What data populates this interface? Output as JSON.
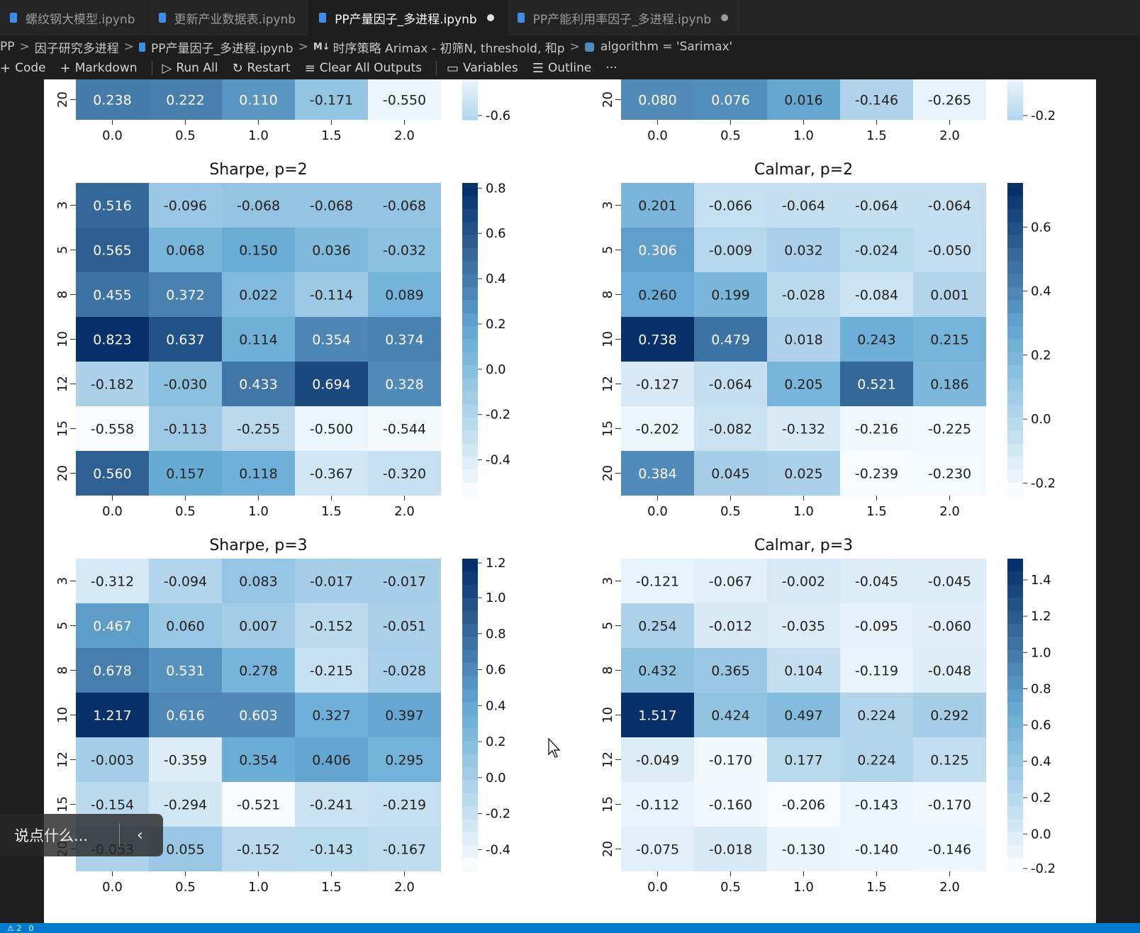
{
  "tabs": [
    {
      "label": "螺纹钢大模型.ipynb",
      "active": false,
      "dirty": false
    },
    {
      "label": "更新产业数据表.ipynb",
      "active": false,
      "dirty": false
    },
    {
      "label": "PP产量因子_多进程.ipynb",
      "active": true,
      "dirty": true
    },
    {
      "label": "PP产能利用率因子_多进程.ipynb",
      "active": false,
      "dirty": true
    }
  ],
  "breadcrumb": {
    "root": "PP",
    "folder": "因子研究多进程",
    "file": "PP产量因子_多进程.ipynb",
    "md_marker": "M↓",
    "section": "时序策略 Arimax - 初筛N, threshold, 和p",
    "symbol": "algorithm = 'Sarimax'"
  },
  "toolbar": {
    "code": "Code",
    "markdown": "Markdown",
    "run_all": "Run All",
    "restart": "Restart",
    "clear": "Clear All Outputs",
    "variables": "Variables",
    "outline": "Outline",
    "more": "···"
  },
  "colors": {
    "heat_low": "#f7fbff",
    "heat_high": "#08306b",
    "accent": "#007acc"
  },
  "chart_data": [
    {
      "type": "heatmap",
      "title": "",
      "partial": true,
      "x_categories": [
        "0.0",
        "0.5",
        "1.0",
        "1.5",
        "2.0"
      ],
      "y_categories": [
        "20"
      ],
      "values": [
        [
          0.238,
          0.222,
          0.11,
          -0.171,
          -0.55
        ]
      ],
      "vmin": -0.6,
      "vmax": 0.6,
      "colorbar_ticks": [
        "-0.6"
      ]
    },
    {
      "type": "heatmap",
      "title": "",
      "partial": true,
      "x_categories": [
        "0.0",
        "0.5",
        "1.0",
        "1.5",
        "2.0"
      ],
      "y_categories": [
        "20"
      ],
      "values": [
        [
          0.08,
          0.076,
          0.016,
          -0.146,
          -0.265
        ]
      ],
      "vmin": -0.3,
      "vmax": 0.3,
      "colorbar_ticks": [
        "-0.2"
      ]
    },
    {
      "type": "heatmap",
      "title": "Sharpe, p=2",
      "x_categories": [
        "0.0",
        "0.5",
        "1.0",
        "1.5",
        "2.0"
      ],
      "y_categories": [
        "3",
        "5",
        "8",
        "10",
        "12",
        "15",
        "20"
      ],
      "values": [
        [
          0.516,
          -0.096,
          -0.068,
          -0.068,
          -0.068
        ],
        [
          0.565,
          0.068,
          0.15,
          0.036,
          -0.032
        ],
        [
          0.455,
          0.372,
          0.022,
          -0.114,
          0.089
        ],
        [
          0.823,
          0.637,
          0.114,
          0.354,
          0.374
        ],
        [
          -0.182,
          -0.03,
          0.433,
          0.694,
          0.328
        ],
        [
          -0.558,
          -0.113,
          -0.255,
          -0.5,
          -0.544
        ],
        [
          0.56,
          0.157,
          0.118,
          -0.367,
          -0.32
        ]
      ],
      "vmin": -0.558,
      "vmax": 0.823,
      "colorbar_ticks": [
        "0.8",
        "0.6",
        "0.4",
        "0.2",
        "0.0",
        "-0.2",
        "-0.4"
      ]
    },
    {
      "type": "heatmap",
      "title": "Calmar, p=2",
      "x_categories": [
        "0.0",
        "0.5",
        "1.0",
        "1.5",
        "2.0"
      ],
      "y_categories": [
        "3",
        "5",
        "8",
        "10",
        "12",
        "15",
        "20"
      ],
      "values": [
        [
          0.201,
          -0.066,
          -0.064,
          -0.064,
          -0.064
        ],
        [
          0.306,
          -0.009,
          0.032,
          -0.024,
          -0.05
        ],
        [
          0.26,
          0.199,
          -0.028,
          -0.084,
          0.001
        ],
        [
          0.738,
          0.479,
          0.018,
          0.243,
          0.215
        ],
        [
          -0.127,
          -0.064,
          0.205,
          0.521,
          0.186
        ],
        [
          -0.202,
          -0.082,
          -0.132,
          -0.216,
          -0.225
        ],
        [
          0.384,
          0.045,
          0.025,
          -0.239,
          -0.23
        ]
      ],
      "vmin": -0.239,
      "vmax": 0.738,
      "colorbar_ticks": [
        "0.6",
        "0.4",
        "0.2",
        "0.0",
        "-0.2"
      ]
    },
    {
      "type": "heatmap",
      "title": "Sharpe, p=3",
      "x_categories": [
        "0.0",
        "0.5",
        "1.0",
        "1.5",
        "2.0"
      ],
      "y_categories": [
        "3",
        "5",
        "8",
        "10",
        "12",
        "15",
        "20"
      ],
      "values": [
        [
          -0.312,
          -0.094,
          0.083,
          -0.017,
          -0.017
        ],
        [
          0.467,
          0.06,
          0.007,
          -0.152,
          -0.051
        ],
        [
          0.678,
          0.531,
          0.278,
          -0.215,
          -0.028
        ],
        [
          1.217,
          0.616,
          0.603,
          0.327,
          0.397
        ],
        [
          -0.003,
          -0.359,
          0.354,
          0.406,
          0.295
        ],
        [
          -0.154,
          -0.294,
          -0.521,
          -0.241,
          -0.219
        ],
        [
          -0.053,
          0.055,
          -0.152,
          -0.143,
          -0.167
        ]
      ],
      "vmin": -0.521,
      "vmax": 1.217,
      "colorbar_ticks": [
        "1.2",
        "1.0",
        "0.8",
        "0.6",
        "0.4",
        "0.2",
        "0.0",
        "-0.2",
        "-0.4"
      ]
    },
    {
      "type": "heatmap",
      "title": "Calmar, p=3",
      "x_categories": [
        "0.0",
        "0.5",
        "1.0",
        "1.5",
        "2.0"
      ],
      "y_categories": [
        "3",
        "5",
        "8",
        "10",
        "12",
        "15",
        "20"
      ],
      "values": [
        [
          -0.121,
          -0.067,
          -0.002,
          -0.045,
          -0.045
        ],
        [
          0.254,
          -0.012,
          -0.035,
          -0.095,
          -0.06
        ],
        [
          0.432,
          0.365,
          0.104,
          -0.119,
          -0.048
        ],
        [
          1.517,
          0.424,
          0.497,
          0.224,
          0.292
        ],
        [
          -0.049,
          -0.17,
          0.177,
          0.224,
          0.125
        ],
        [
          -0.112,
          -0.16,
          -0.206,
          -0.143,
          -0.17
        ],
        [
          -0.075,
          -0.018,
          -0.13,
          -0.14,
          -0.146
        ]
      ],
      "vmin": -0.206,
      "vmax": 1.517,
      "colorbar_ticks": [
        "1.4",
        "1.2",
        "1.0",
        "0.8",
        "0.6",
        "0.4",
        "0.2",
        "0.0",
        "-0.2"
      ]
    }
  ],
  "chat": {
    "placeholder": "说点什么...",
    "chevron": "‹"
  },
  "status": {
    "warnings": "⚠ 2",
    "ports": "0"
  }
}
